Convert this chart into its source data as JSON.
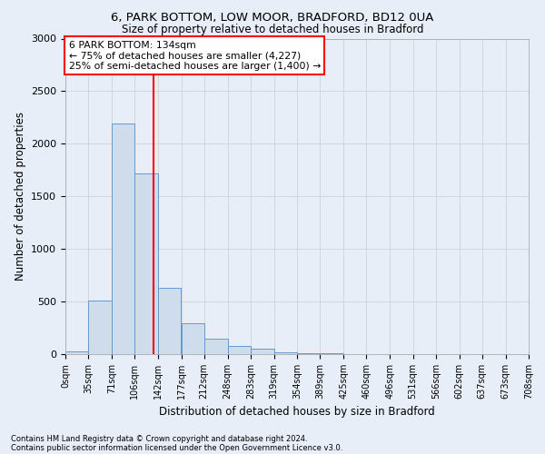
{
  "title1": "6, PARK BOTTOM, LOW MOOR, BRADFORD, BD12 0UA",
  "title2": "Size of property relative to detached houses in Bradford",
  "xlabel": "Distribution of detached houses by size in Bradford",
  "ylabel": "Number of detached properties",
  "footnote1": "Contains HM Land Registry data © Crown copyright and database right 2024.",
  "footnote2": "Contains public sector information licensed under the Open Government Licence v3.0.",
  "annotation_line1": "6 PARK BOTTOM: 134sqm",
  "annotation_line2": "← 75% of detached houses are smaller (4,227)",
  "annotation_line3": "25% of semi-detached houses are larger (1,400) →",
  "bin_edges": [
    0,
    35,
    71,
    106,
    142,
    177,
    212,
    248,
    283,
    319,
    354,
    389,
    425,
    460,
    496,
    531,
    566,
    602,
    637,
    673,
    708
  ],
  "bar_values": [
    30,
    510,
    2190,
    1720,
    630,
    290,
    145,
    80,
    50,
    20,
    10,
    5,
    3,
    2,
    2,
    1,
    1,
    1,
    1,
    1
  ],
  "bar_color": "#cfdcec",
  "bar_edgecolor": "#6699cc",
  "vline_color": "red",
  "vline_x": 134,
  "ylim": [
    0,
    3000
  ],
  "yticks": [
    0,
    500,
    1000,
    1500,
    2000,
    2500,
    3000
  ],
  "annotation_box_edgecolor": "red",
  "annotation_box_facecolor": "white",
  "grid_color": "#cccccc",
  "background_color": "#e8eef8"
}
